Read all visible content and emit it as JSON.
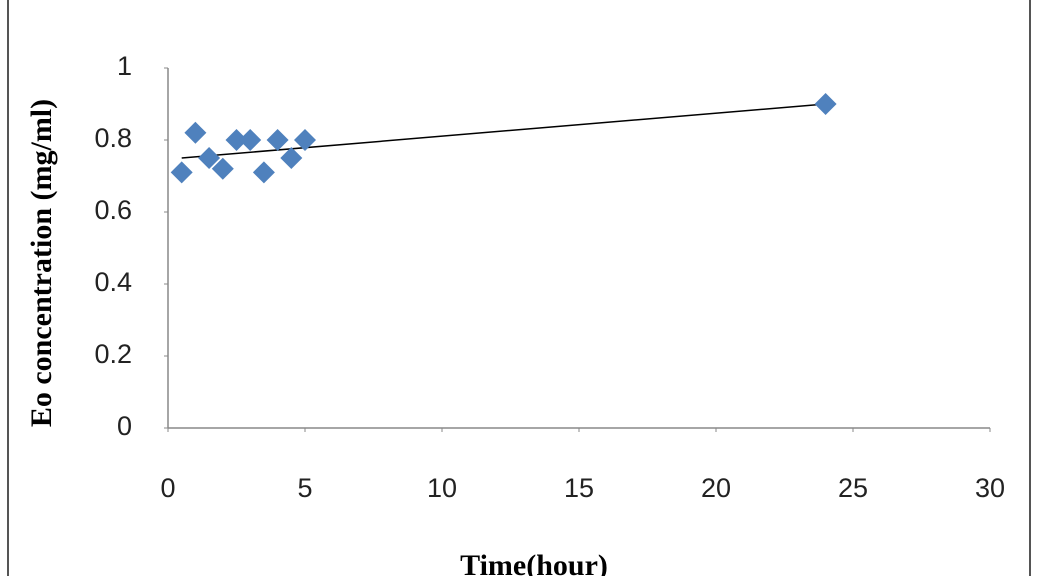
{
  "chart_data": {
    "type": "scatter",
    "x_label": "Time(hour)",
    "y_label": "Eo concentration (mg/ml)",
    "x": [
      0.5,
      1,
      1.5,
      2,
      2.5,
      3,
      3.5,
      4,
      4.5,
      5,
      24
    ],
    "values": [
      0.71,
      0.82,
      0.75,
      0.72,
      0.8,
      0.8,
      0.71,
      0.8,
      0.75,
      0.8,
      0.9
    ],
    "color": "#4f81bd",
    "trendline": {
      "x": [
        0.5,
        24
      ],
      "values": [
        0.75,
        0.9
      ],
      "color": "#000000"
    },
    "xlim": [
      0,
      30
    ],
    "xticks": [
      0,
      5,
      10,
      15,
      20,
      25,
      30
    ],
    "ylim": [
      0,
      1
    ],
    "yticks": [
      0,
      0.2,
      0.4,
      0.6,
      0.8,
      1
    ],
    "grid": false
  }
}
